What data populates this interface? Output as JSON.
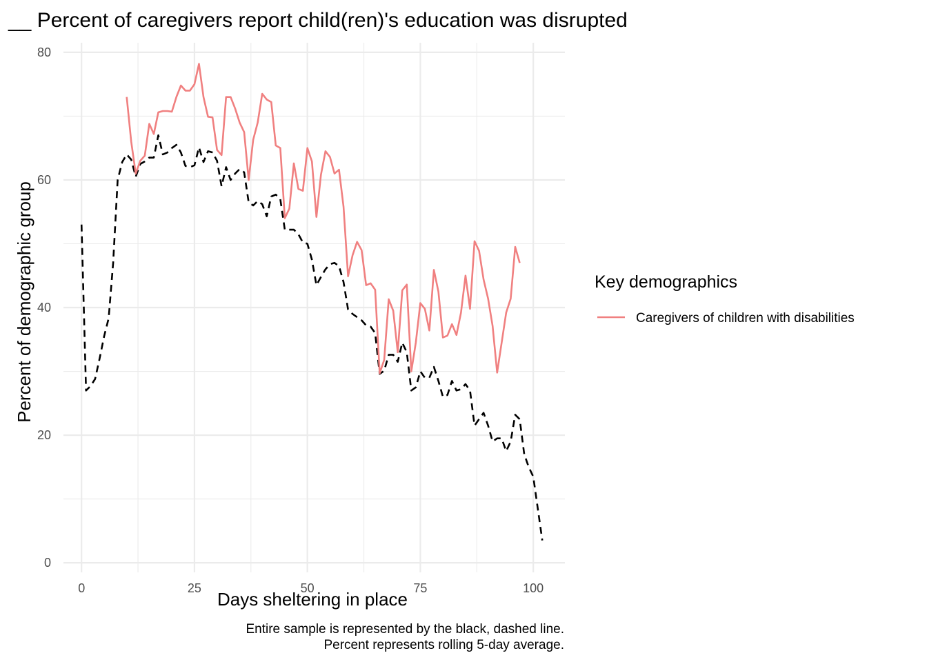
{
  "chart_data": {
    "type": "line",
    "title": "__ Percent of caregivers report child(ren)'s education was disrupted",
    "xlabel": "Days sheltering in place",
    "ylabel": "Percent of demographic group",
    "xlim": [
      -4,
      107
    ],
    "ylim": [
      -1.5,
      81.5
    ],
    "x_ticks": [
      0,
      25,
      50,
      75,
      100
    ],
    "y_ticks": [
      0,
      20,
      40,
      60,
      80
    ],
    "x_tick_labels": [
      "0",
      "25",
      "50",
      "75",
      "100"
    ],
    "y_tick_labels": [
      "0",
      "20",
      "40",
      "60",
      "80"
    ],
    "grid": true,
    "legend": {
      "title": "Key demographics",
      "position": "right",
      "entries": [
        "Caregivers of children with disabilities"
      ]
    },
    "caption": [
      "Entire sample is represented by the black, dashed line.",
      "Percent represents rolling 5-day average."
    ],
    "series": [
      {
        "name": "Caregivers of children with disabilities",
        "color": "#f08080",
        "style": "solid",
        "x": [
          10,
          11,
          12,
          13,
          14,
          15,
          16,
          17,
          18,
          19,
          20,
          21,
          22,
          23,
          24,
          25,
          26,
          27,
          28,
          29,
          30,
          31,
          32,
          33,
          34,
          35,
          36,
          37,
          38,
          39,
          40,
          41,
          42,
          43,
          44,
          45,
          46,
          47,
          48,
          49,
          50,
          51,
          52,
          53,
          54,
          55,
          56,
          57,
          58,
          59,
          60,
          61,
          62,
          63,
          64,
          65,
          66,
          67,
          68,
          69,
          70,
          71,
          72,
          73,
          74,
          75,
          76,
          77,
          78,
          79,
          80,
          81,
          82,
          83,
          84,
          85,
          86,
          87,
          88,
          89,
          90,
          91,
          92,
          93,
          94,
          95,
          96,
          97
        ],
        "values": [
          73,
          66,
          61,
          63,
          63.8,
          68.8,
          67.2,
          70.6,
          70.8,
          70.8,
          70.7,
          73,
          74.8,
          74,
          74,
          75,
          78.2,
          73,
          69.9,
          69.8,
          64.7,
          63.9,
          73,
          73,
          71.2,
          69,
          67.5,
          60,
          66.3,
          69,
          73.5,
          72.6,
          72.2,
          65.4,
          65,
          54,
          55.5,
          62.6,
          58.6,
          58.3,
          65,
          62.9,
          54.2,
          60.8,
          64.5,
          63.6,
          61,
          61.6,
          55.8,
          44.9,
          48.2,
          50.3,
          49,
          43.5,
          43.8,
          42.8,
          29.7,
          31.8,
          41.3,
          39.5,
          33,
          42.7,
          43.6,
          30,
          34.5,
          40.7,
          39.8,
          36.4,
          45.9,
          42.5,
          35.3,
          35.6,
          37.4,
          35.7,
          39.2,
          45,
          39.8,
          50.4,
          48.9,
          44.4,
          41.4,
          37.1,
          29.8,
          34.5,
          39.2,
          41.4,
          49.5,
          47
        ]
      },
      {
        "name": "",
        "color": "#000000",
        "style": "dashed",
        "x": [
          0,
          1,
          2,
          3,
          4,
          5,
          6,
          7,
          8,
          9,
          10,
          11,
          12,
          13,
          14,
          15,
          16,
          17,
          18,
          19,
          20,
          21,
          22,
          23,
          24,
          25,
          26,
          27,
          28,
          29,
          30,
          31,
          32,
          33,
          34,
          35,
          36,
          37,
          38,
          39,
          40,
          41,
          42,
          43,
          44,
          45,
          46,
          47,
          48,
          49,
          50,
          51,
          52,
          53,
          54,
          55,
          56,
          57,
          58,
          59,
          60,
          61,
          62,
          63,
          64,
          65,
          66,
          67,
          68,
          69,
          70,
          71,
          72,
          73,
          74,
          75,
          76,
          77,
          78,
          79,
          80,
          81,
          82,
          83,
          84,
          85,
          86,
          87,
          88,
          89,
          90,
          91,
          92,
          93,
          94,
          95,
          96,
          97,
          98,
          99,
          100,
          101,
          102
        ],
        "values": [
          53,
          27,
          27.7,
          28.8,
          32,
          35.5,
          38.3,
          47,
          60,
          62.8,
          64,
          63.2,
          60.5,
          62.5,
          62.9,
          63.5,
          63.5,
          67,
          64,
          64.3,
          65,
          65.5,
          64.3,
          62.2,
          62,
          62.3,
          65.1,
          62.8,
          64.5,
          64.3,
          63,
          59,
          62,
          60,
          61,
          61.7,
          61.2,
          56.5,
          56,
          56.7,
          56.2,
          54.3,
          57.4,
          57.7,
          57,
          52.2,
          52.2,
          52.2,
          51.5,
          50.2,
          50,
          47.5,
          43.5,
          44.8,
          46,
          46.8,
          47,
          46.5,
          44,
          39.7,
          39,
          38.5,
          38,
          37.2,
          37,
          36,
          29.6,
          30.1,
          32.6,
          32.6,
          31.5,
          34.5,
          33,
          27,
          27.5,
          30,
          29,
          29,
          30.7,
          28.5,
          26,
          26.3,
          28.5,
          27,
          27.2,
          28,
          27,
          21.5,
          22.5,
          23.5,
          21.5,
          19,
          19.5,
          19.5,
          17.5,
          19,
          23.2,
          22.5,
          17,
          15,
          13.5,
          8.5,
          3.5
        ]
      }
    ]
  }
}
